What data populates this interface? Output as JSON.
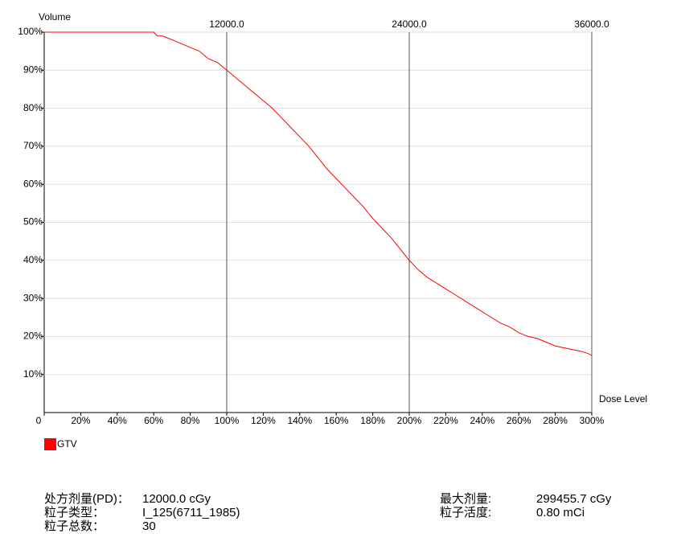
{
  "chart_data": {
    "type": "line",
    "ylabel": "Volume",
    "xlabel": "Dose Level",
    "x": [
      0,
      60,
      62,
      65,
      70,
      75,
      80,
      85,
      90,
      95,
      100,
      105,
      110,
      115,
      120,
      125,
      130,
      135,
      140,
      145,
      150,
      155,
      160,
      165,
      170,
      175,
      180,
      185,
      190,
      195,
      200,
      205,
      210,
      215,
      220,
      225,
      230,
      235,
      240,
      245,
      250,
      255,
      260,
      265,
      270,
      275,
      280,
      285,
      290,
      295,
      298,
      300
    ],
    "series": [
      {
        "name": "GTV",
        "color": "#ff0000",
        "values": [
          100,
          100,
          99,
          99,
          98,
          97,
          96,
          95,
          93,
          92,
          90,
          88,
          86,
          84,
          82,
          80,
          77.5,
          75,
          72.5,
          70,
          67,
          64,
          61.5,
          59,
          56.5,
          54,
          51,
          48.5,
          46,
          43,
          40,
          37.5,
          35.5,
          34,
          32.5,
          31,
          29.5,
          28,
          26.5,
          25,
          23.5,
          22.5,
          21,
          20,
          19.5,
          18.5,
          17.5,
          17,
          16.5,
          16,
          15.5,
          15
        ]
      }
    ],
    "xlim": [
      0,
      300
    ],
    "xticks": [
      0,
      {
        "value": 20,
        "label": "20%"
      },
      {
        "value": 40,
        "label": "40%"
      },
      {
        "value": 60,
        "label": "60%"
      },
      {
        "value": 80,
        "label": "80%"
      },
      {
        "value": 100,
        "label": "100%"
      },
      {
        "value": 120,
        "label": "120%"
      },
      {
        "value": 140,
        "label": "140%"
      },
      {
        "value": 160,
        "label": "160%"
      },
      {
        "value": 180,
        "label": "180%"
      },
      {
        "value": 200,
        "label": "200%"
      },
      {
        "value": 220,
        "label": "220%"
      },
      {
        "value": 240,
        "label": "240%"
      },
      {
        "value": 260,
        "label": "260%"
      },
      {
        "value": 280,
        "label": "280%"
      },
      {
        "value": 300,
        "label": "300%"
      }
    ],
    "x2lim": [
      0,
      36000
    ],
    "x2ticks": [
      {
        "value": 12000,
        "label": "12000.0"
      },
      {
        "value": 24000,
        "label": "24000.0"
      },
      {
        "value": 36000,
        "label": "36000.0"
      }
    ],
    "ylim": [
      0,
      100
    ],
    "yticks": [
      {
        "value": 10,
        "label": "10%"
      },
      {
        "value": 20,
        "label": "20%"
      },
      {
        "value": 30,
        "label": "30%"
      },
      {
        "value": 40,
        "label": "40%"
      },
      {
        "value": 50,
        "label": "50%"
      },
      {
        "value": 60,
        "label": "60%"
      },
      {
        "value": 70,
        "label": "70%"
      },
      {
        "value": 80,
        "label": "80%"
      },
      {
        "value": 90,
        "label": "90%"
      },
      {
        "value": 100,
        "label": "100%"
      }
    ],
    "grid": true
  },
  "info": {
    "left": [
      [
        "处方剂量(PD)：",
        "12000.0 cGy"
      ],
      [
        "粒子类型：",
        "I_125(6711_1985)"
      ],
      [
        "粒子总数：",
        "30"
      ]
    ],
    "right": [
      [
        "最大剂量:",
        "299455.7 cGy"
      ],
      [
        "粒子活度:",
        "0.80 mCi"
      ]
    ]
  }
}
